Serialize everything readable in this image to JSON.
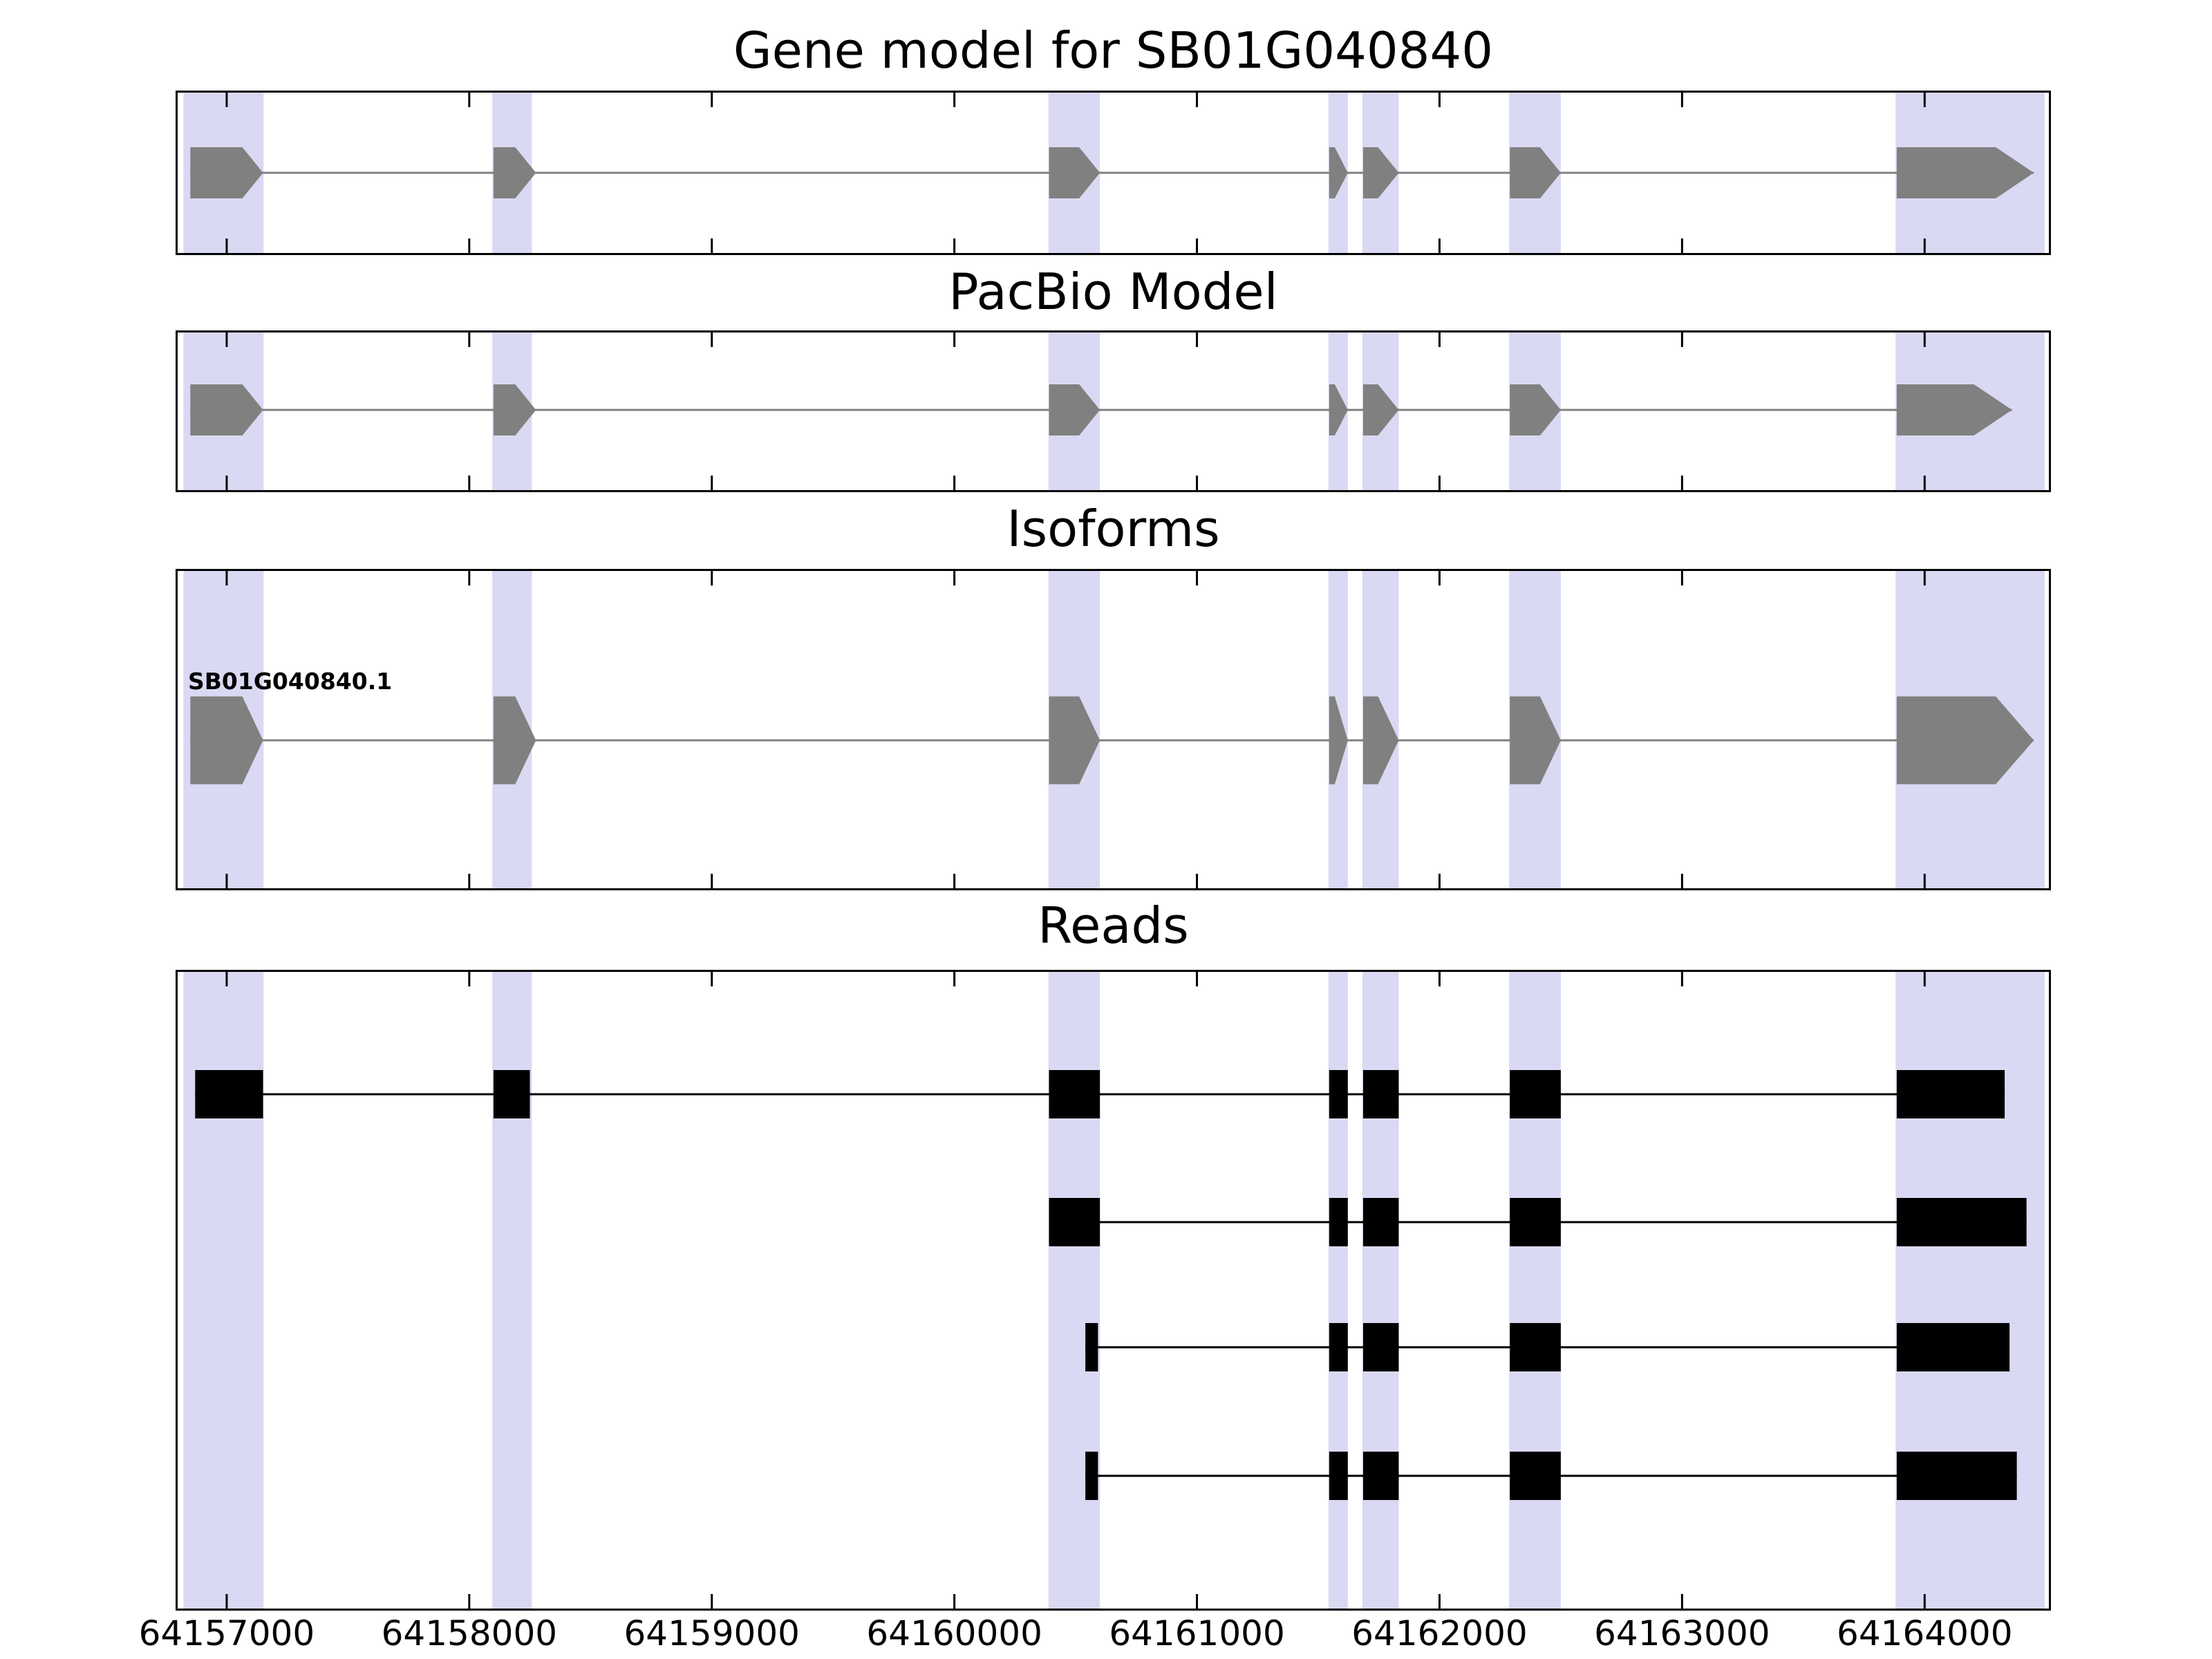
{
  "panels": {
    "gene_model": {
      "title": "Gene model for SB01G040840"
    },
    "pacbio": {
      "title": "PacBio Model"
    },
    "isoforms": {
      "title": "Isoforms"
    },
    "reads": {
      "title": "Reads"
    }
  },
  "colors": {
    "model_fill": "#808080",
    "intron_line": "#808080",
    "read_fill": "#000000",
    "highlight": "#d9d9f3",
    "border": "#000000",
    "background": "#ffffff",
    "text": "#000000"
  },
  "chart_data": {
    "type": "gene-model-tracks",
    "title": "Gene model for SB01G040840",
    "x": {
      "range": [
        64156795,
        64164515
      ],
      "ticks": [
        64157000,
        64158000,
        64159000,
        64160000,
        64161000,
        64162000,
        64163000,
        64164000
      ],
      "tick_labels": [
        "64157000",
        "64158000",
        "64159000",
        "64160000",
        "64161000",
        "64162000",
        "64163000",
        "64164000"
      ]
    },
    "highlight_regions": [
      [
        64156822,
        64157152
      ],
      [
        64158095,
        64158258
      ],
      [
        64160388,
        64160600
      ],
      [
        64161542,
        64161622
      ],
      [
        64161682,
        64161832
      ],
      [
        64162287,
        64162500
      ],
      [
        64163880,
        64164495
      ]
    ],
    "tracks": {
      "gene_model": {
        "name": "Gene model for SB01G040840",
        "strand": "+",
        "exons": [
          [
            64156850,
            64157150
          ],
          [
            64158100,
            64158275
          ],
          [
            64160390,
            64160600
          ],
          [
            64161545,
            64161622
          ],
          [
            64161685,
            64161832
          ],
          [
            64162290,
            64162500
          ],
          [
            64163885,
            64164450
          ]
        ]
      },
      "pacbio": {
        "name": "PacBio Model",
        "strand": "+",
        "exons": [
          [
            64156850,
            64157150
          ],
          [
            64158100,
            64158275
          ],
          [
            64160390,
            64160600
          ],
          [
            64161545,
            64161622
          ],
          [
            64161685,
            64161832
          ],
          [
            64162290,
            64162500
          ],
          [
            64163885,
            64164360
          ]
        ]
      },
      "isoform": {
        "label": "SB01G040840.1",
        "strand": "+",
        "exons": [
          [
            64156850,
            64157150
          ],
          [
            64158100,
            64158275
          ],
          [
            64160390,
            64160600
          ],
          [
            64161545,
            64161622
          ],
          [
            64161685,
            64161832
          ],
          [
            64162290,
            64162500
          ],
          [
            64163885,
            64164450
          ]
        ]
      },
      "reads": [
        {
          "exons": [
            [
              64156870,
              64157150
            ],
            [
              64158100,
              64158250
            ],
            [
              64160390,
              64160600
            ],
            [
              64161545,
              64161622
            ],
            [
              64161685,
              64161832
            ],
            [
              64162290,
              64162500
            ],
            [
              64163885,
              64164330
            ]
          ]
        },
        {
          "exons": [
            [
              64160390,
              64160600
            ],
            [
              64161545,
              64161622
            ],
            [
              64161685,
              64161832
            ],
            [
              64162290,
              64162500
            ],
            [
              64163885,
              64164420
            ]
          ]
        },
        {
          "exons": [
            [
              64160540,
              64160592
            ],
            [
              64161545,
              64161622
            ],
            [
              64161685,
              64161832
            ],
            [
              64162290,
              64162500
            ],
            [
              64163885,
              64164350
            ]
          ]
        },
        {
          "exons": [
            [
              64160540,
              64160592
            ],
            [
              64161545,
              64161622
            ],
            [
              64161685,
              64161832
            ],
            [
              64162290,
              64162500
            ],
            [
              64163885,
              64164380
            ]
          ]
        }
      ]
    }
  }
}
